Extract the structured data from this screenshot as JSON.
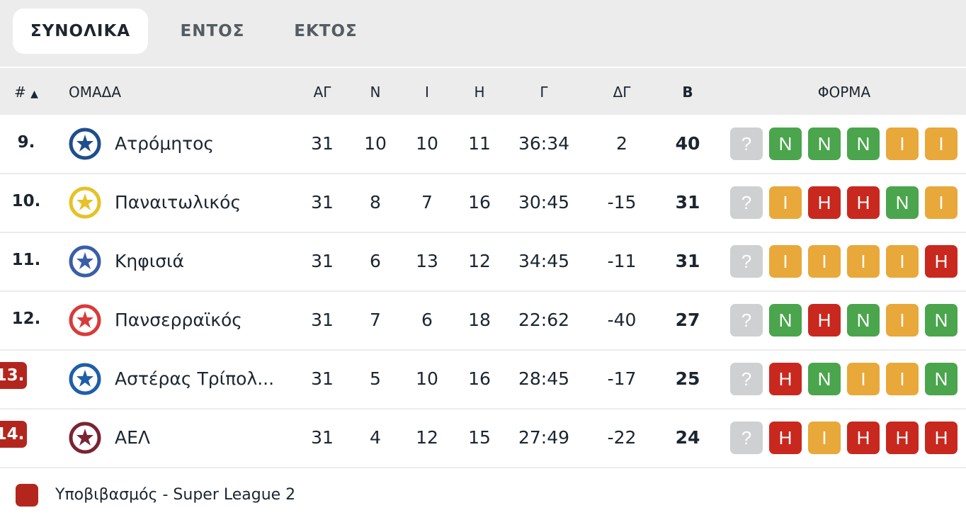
{
  "tabs": [
    "ΣΥΝΟΛΙΚΑ",
    "ΕΝΤΟΣ",
    "ΕΚΤΟΣ"
  ],
  "active_tab": "ΣΥΝΟΛΙΚΑ",
  "columns": {
    "pos": "#",
    "team": "ΟΜΑΔΑ",
    "played": "ΑΓ",
    "wins": "Ν",
    "draws": "Ι",
    "losses": "Η",
    "goals": "Γ",
    "diff": "ΔΓ",
    "points": "Β",
    "form": "ΦΟΡΜΑ"
  },
  "colors": {
    "win": "#4aa54c",
    "draw": "#e8a83a",
    "loss": "#c9281e",
    "unknown": "#ced0d2",
    "relegation": "#b3261e"
  },
  "rows": [
    {
      "pos": "9.",
      "team": "Ατρόμητος",
      "played": "31",
      "wins": "10",
      "draws": "10",
      "losses": "11",
      "goals": "36:34",
      "diff": "2",
      "points": "40",
      "relegation": false,
      "form": [
        "?",
        "N",
        "N",
        "N",
        "I",
        "I"
      ],
      "logo_color": "#1f4e8c"
    },
    {
      "pos": "10.",
      "team": "Παναιτωλικός",
      "played": "31",
      "wins": "8",
      "draws": "7",
      "losses": "16",
      "goals": "30:45",
      "diff": "-15",
      "points": "31",
      "relegation": false,
      "form": [
        "?",
        "I",
        "H",
        "H",
        "N",
        "I"
      ],
      "logo_color": "#e6c227"
    },
    {
      "pos": "11.",
      "team": "Κηφισιά",
      "played": "31",
      "wins": "6",
      "draws": "13",
      "losses": "12",
      "goals": "34:45",
      "diff": "-11",
      "points": "31",
      "relegation": false,
      "form": [
        "?",
        "I",
        "I",
        "I",
        "I",
        "H"
      ],
      "logo_color": "#3a5ea8"
    },
    {
      "pos": "12.",
      "team": "Πανσερραϊκός",
      "played": "31",
      "wins": "7",
      "draws": "6",
      "losses": "18",
      "goals": "22:62",
      "diff": "-40",
      "points": "27",
      "relegation": false,
      "form": [
        "?",
        "N",
        "H",
        "N",
        "I",
        "N"
      ],
      "logo_color": "#d93a3a"
    },
    {
      "pos": "13.",
      "team": "Αστέρας Τρίπολ...",
      "played": "31",
      "wins": "5",
      "draws": "10",
      "losses": "16",
      "goals": "28:45",
      "diff": "-17",
      "points": "25",
      "relegation": true,
      "form": [
        "?",
        "H",
        "N",
        "I",
        "I",
        "N"
      ],
      "logo_color": "#1f5ea8"
    },
    {
      "pos": "14.",
      "team": "ΑΕΛ",
      "played": "31",
      "wins": "4",
      "draws": "12",
      "losses": "15",
      "goals": "27:49",
      "diff": "-22",
      "points": "24",
      "relegation": true,
      "form": [
        "?",
        "H",
        "I",
        "H",
        "H",
        "H"
      ],
      "logo_color": "#7a2333"
    }
  ],
  "legend": {
    "label": "Υποβιβασμός - Super League 2"
  }
}
